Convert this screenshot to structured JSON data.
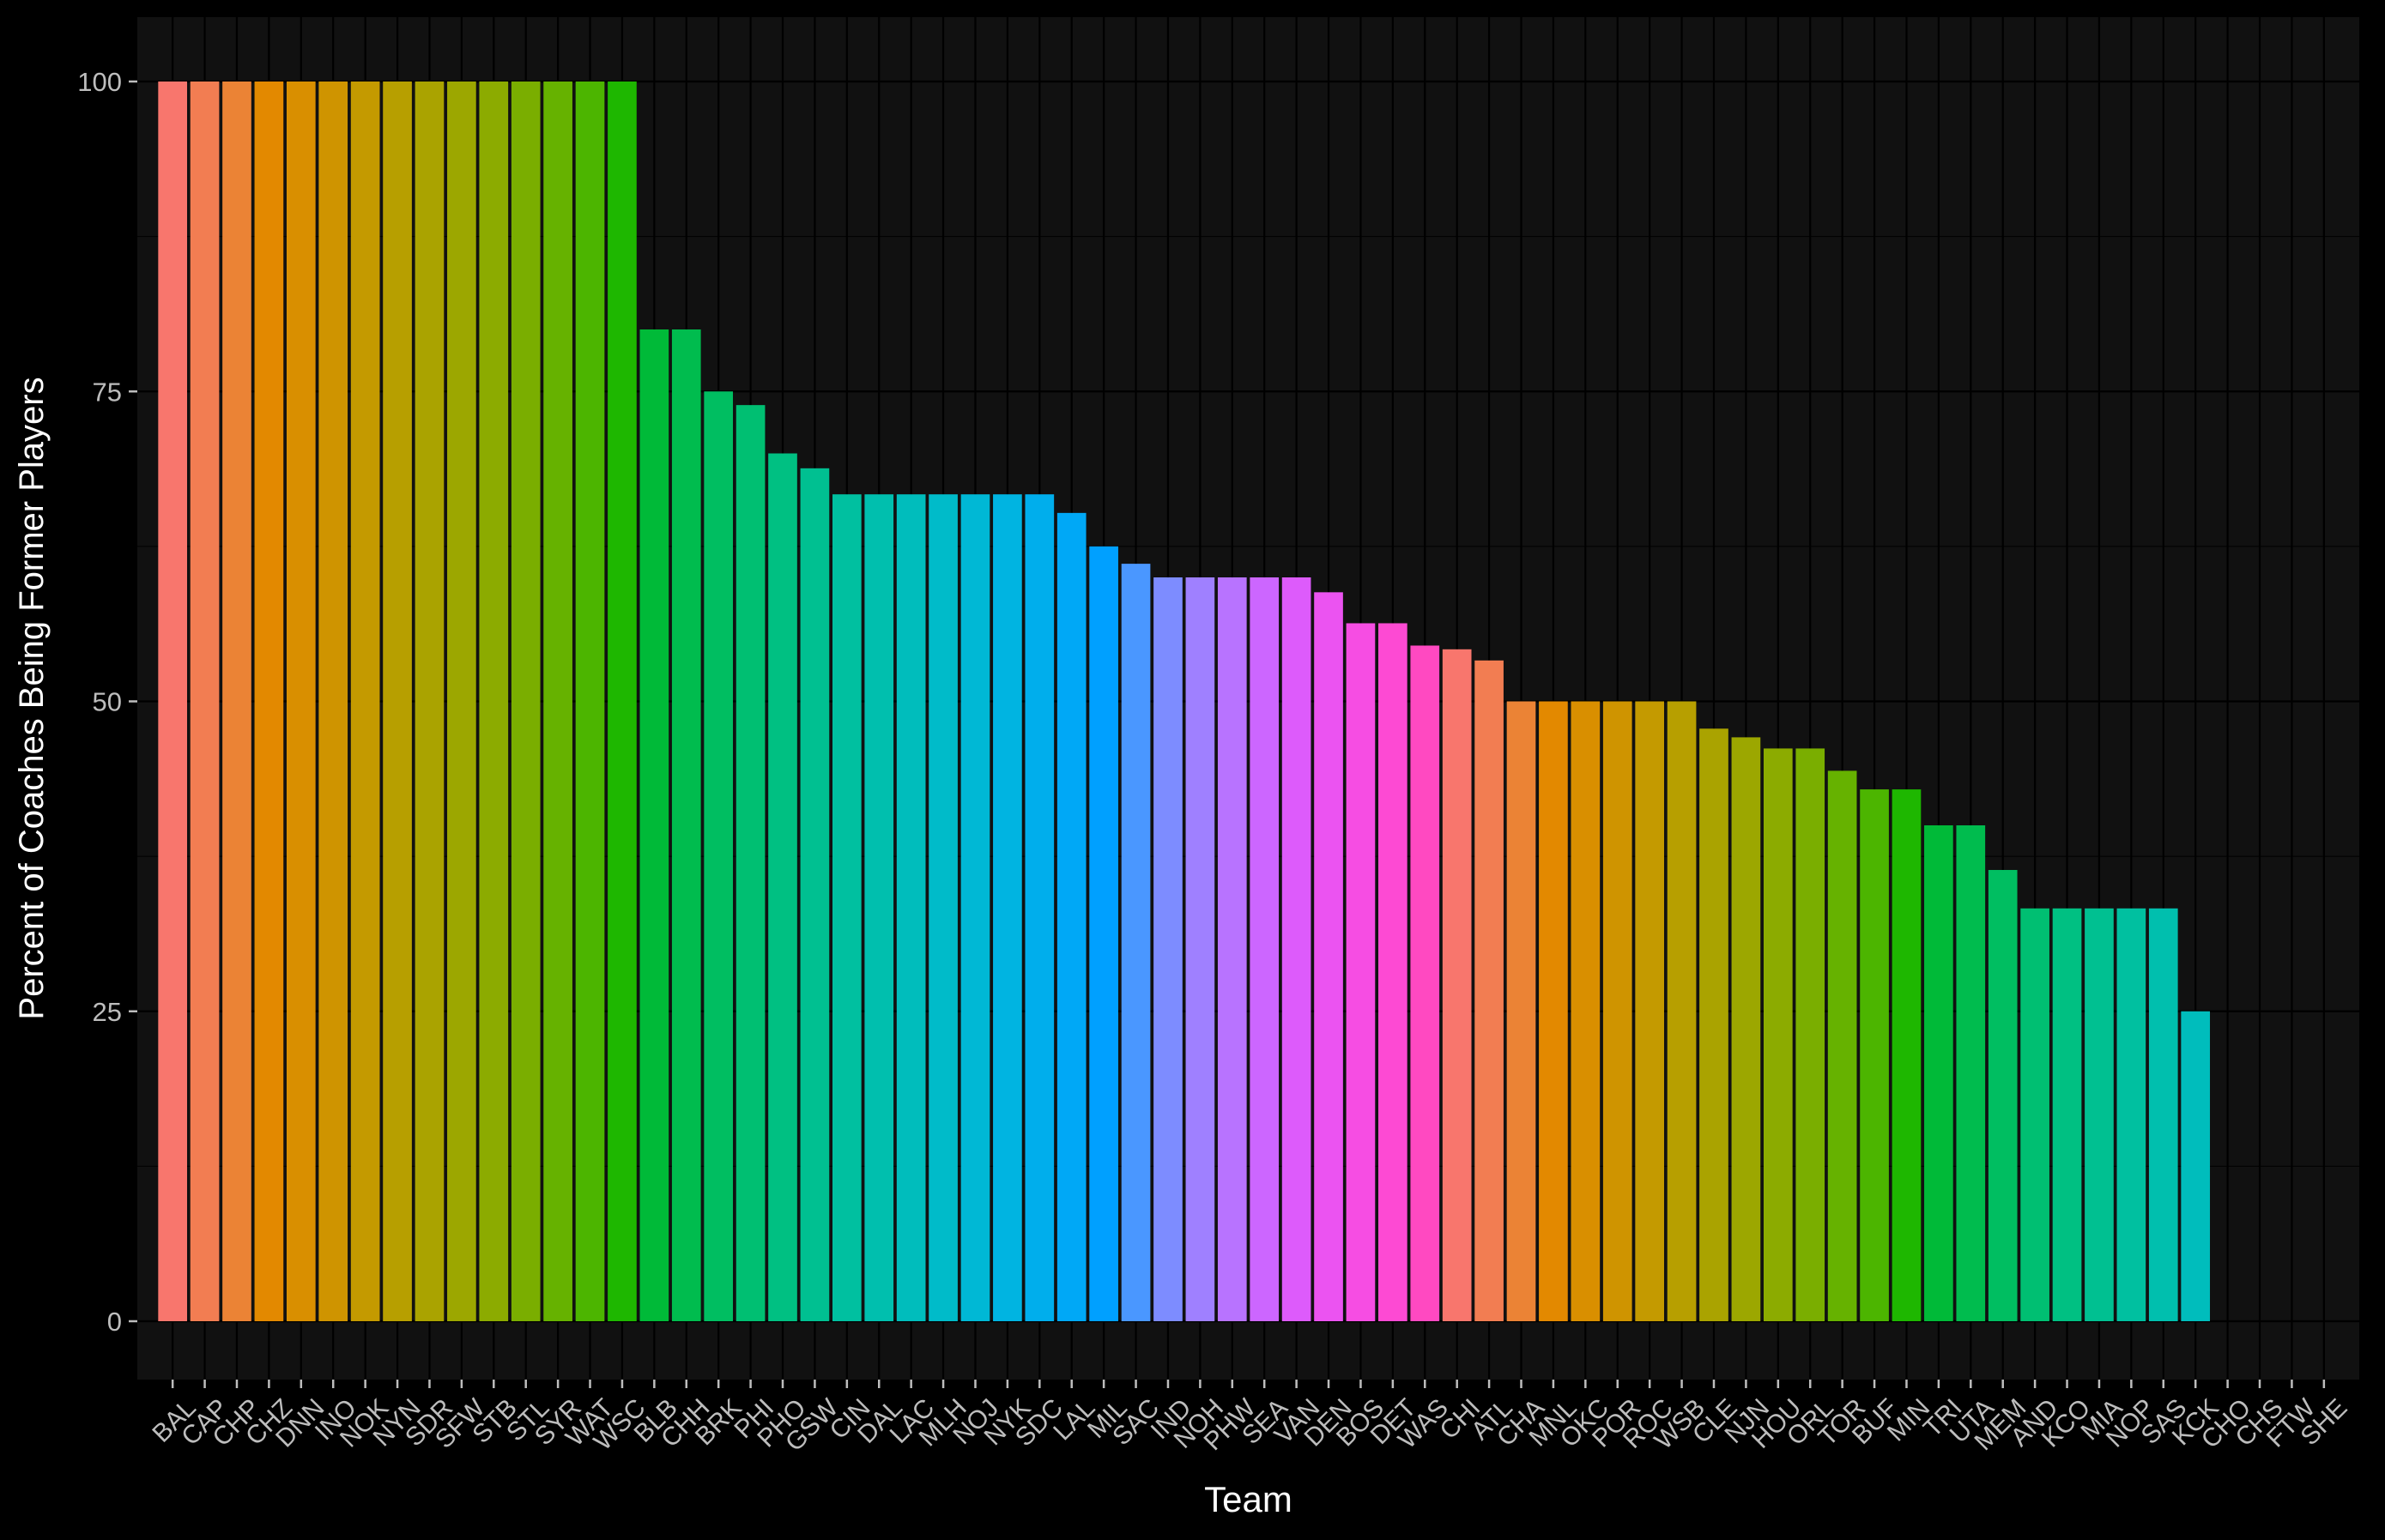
{
  "chart_data": {
    "type": "bar",
    "title": "",
    "xlabel": "Team",
    "ylabel": "Percent of Coaches Being Former Players",
    "ylim": [
      0,
      100
    ],
    "yticks": [
      0,
      25,
      50,
      75,
      100
    ],
    "grid": true,
    "legend": "none",
    "theme": {
      "background": "#000000",
      "panel": "#111111",
      "grid": "#000000",
      "tick_text": "#bdbdbd",
      "title_text": "#ffffff"
    },
    "categories": [
      "BAL",
      "CAP",
      "CHP",
      "CHZ",
      "DNN",
      "INO",
      "NOK",
      "NYN",
      "SDR",
      "SFW",
      "STB",
      "STL",
      "SYR",
      "WAT",
      "WSC",
      "BLB",
      "CHH",
      "BRK",
      "PHI",
      "PHO",
      "GSW",
      "CIN",
      "DAL",
      "LAC",
      "MLH",
      "NOJ",
      "NYK",
      "SDC",
      "LAL",
      "MIL",
      "SAC",
      "IND",
      "NOH",
      "PHW",
      "SEA",
      "VAN",
      "DEN",
      "BOS",
      "DET",
      "WAS",
      "CHI",
      "ATL",
      "CHA",
      "MNL",
      "OKC",
      "POR",
      "ROC",
      "WSB",
      "CLE",
      "NJN",
      "HOU",
      "ORL",
      "TOR",
      "BUF",
      "MIN",
      "TRI",
      "UTA",
      "MEM",
      "AND",
      "KCO",
      "MIA",
      "NOP",
      "SAS",
      "KCK",
      "CHO",
      "CHS",
      "FTW",
      "SHE"
    ],
    "values": [
      100,
      100,
      100,
      100,
      100,
      100,
      100,
      100,
      100,
      100,
      100,
      100,
      100,
      100,
      100,
      80,
      80,
      75,
      73.9,
      70,
      68.8,
      66.7,
      66.7,
      66.7,
      66.7,
      66.7,
      66.7,
      66.7,
      65.2,
      62.5,
      61.1,
      60,
      60,
      60,
      60,
      60,
      58.8,
      56.3,
      56.3,
      54.5,
      54.2,
      53.3,
      50,
      50,
      50,
      50,
      50,
      50,
      47.8,
      47.1,
      46.2,
      46.2,
      44.4,
      42.9,
      42.9,
      40,
      40,
      36.4,
      33.3,
      33.3,
      33.3,
      33.3,
      33.3,
      25,
      0,
      0,
      0,
      0
    ],
    "colors": [
      "#F8766D",
      "#F27D52",
      "#EB8335",
      "#E38900",
      "#D98F00",
      "#CF9400",
      "#C49A00",
      "#B79F00",
      "#AAA300",
      "#9CA700",
      "#8CAB00",
      "#7AAE00",
      "#66B200",
      "#4CB500",
      "#1EB700",
      "#00BA38",
      "#00BC4E",
      "#00BE61",
      "#00BF72",
      "#00C082",
      "#00C091",
      "#00C0A0",
      "#00BFAE",
      "#00BDBC",
      "#00BBC9",
      "#00B8D5",
      "#00B4E1",
      "#00AEEC",
      "#00A8F6",
      "#00A0FF",
      "#4A97FF",
      "#7D8CFF",
      "#9F80FF",
      "#B873FF",
      "#CC66FF",
      "#DD5BFB",
      "#EB53F1",
      "#F64DE3",
      "#FD4AD3",
      "#FF49C1"
    ]
  }
}
